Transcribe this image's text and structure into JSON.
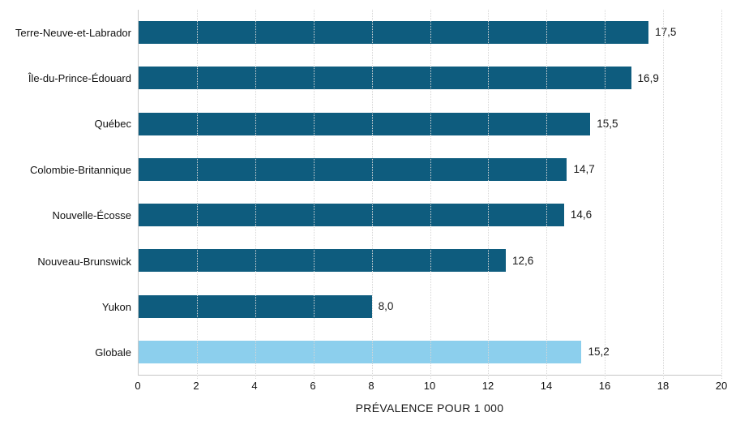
{
  "chart_data": {
    "type": "bar",
    "orientation": "horizontal",
    "title": "",
    "categories": [
      "Terre-Neuve-et-Labrador",
      "Île-du-Prince-Édouard",
      "Québec",
      "Colombie-Britannique",
      "Nouvelle-Écosse",
      "Nouveau-Brunswick",
      "Yukon",
      "Globale"
    ],
    "values": [
      17.5,
      16.9,
      15.5,
      14.7,
      14.6,
      12.6,
      8.0,
      15.2
    ],
    "value_labels": [
      "17,5",
      "16,9",
      "15,5",
      "14,7",
      "14,6",
      "12,6",
      "8,0",
      "15,2"
    ],
    "bar_colors": [
      "#0E5C7E",
      "#0E5C7E",
      "#0E5C7E",
      "#0E5C7E",
      "#0E5C7E",
      "#0E5C7E",
      "#0E5C7E",
      "#8CCFED"
    ],
    "xlabel": "PRÉVALENCE POUR 1 000",
    "ylabel": "",
    "xlim": [
      0,
      20
    ],
    "x_ticks": [
      0,
      2,
      4,
      6,
      8,
      10,
      12,
      14,
      16,
      18,
      20
    ],
    "x_tick_labels": [
      "0",
      "2",
      "4",
      "6",
      "8",
      "10",
      "12",
      "14",
      "16",
      "18",
      "20"
    ],
    "grid": "vertical-dotted",
    "legend": "none",
    "colors": {
      "bar_default": "#0E5C7E",
      "bar_highlight": "#8CCFED",
      "axis_line": "#C9C9C9",
      "gridline": "#D6D6D6",
      "text": "#1A1A1A",
      "background": "#FFFFFF"
    }
  }
}
